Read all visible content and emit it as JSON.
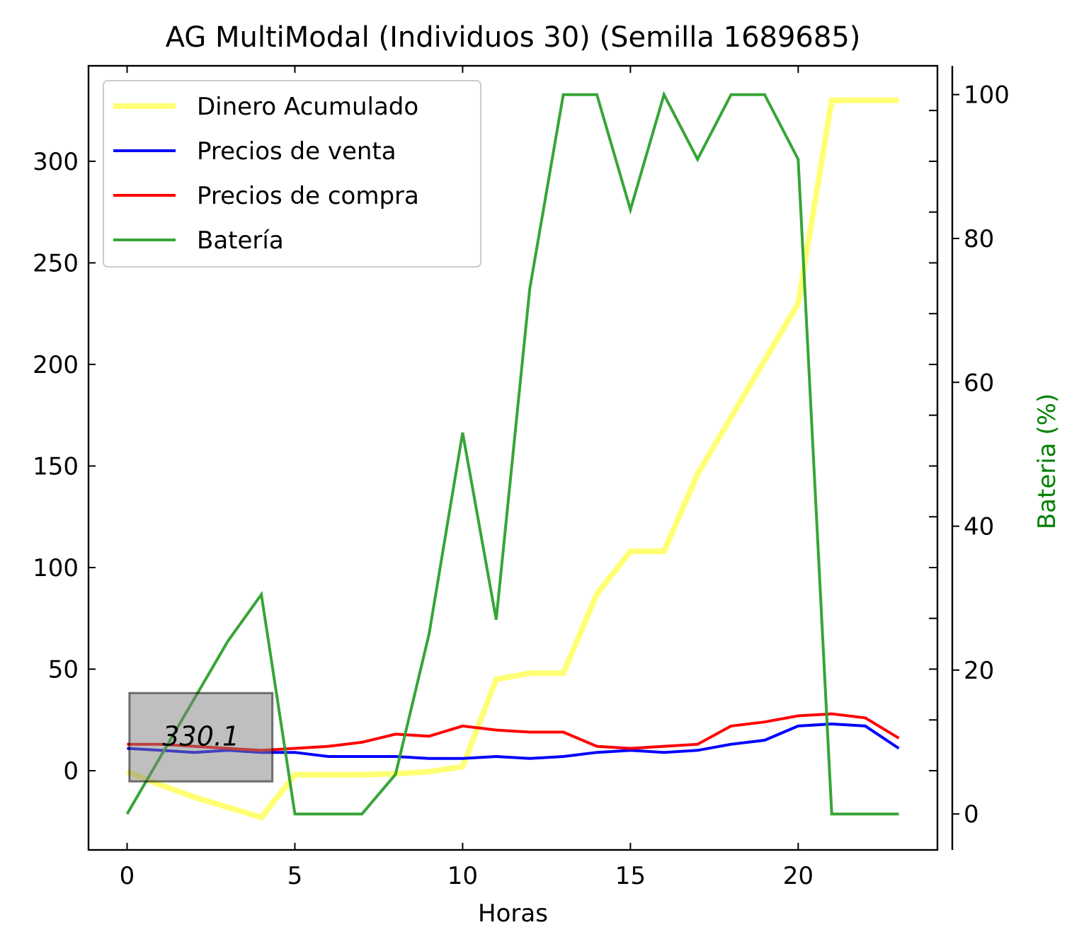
{
  "chart_data": {
    "type": "line",
    "title": "AG MultiModal (Individuos 30) (Semilla 1689685)",
    "xlabel": "Horas",
    "ylabel": "",
    "y2label": "Bateria (%)",
    "x": [
      0,
      1,
      2,
      3,
      4,
      5,
      6,
      7,
      8,
      9,
      10,
      11,
      12,
      13,
      14,
      15,
      16,
      17,
      18,
      19,
      20,
      21,
      22,
      23
    ],
    "xlim": [
      -1.15,
      24.15
    ],
    "ylim": [
      -39,
      347
    ],
    "y2lim": [
      -5,
      104
    ],
    "xticks": [
      0,
      5,
      10,
      15,
      20
    ],
    "yticks": [
      0,
      50,
      100,
      150,
      200,
      250,
      300
    ],
    "y2ticks": [
      0,
      20,
      40,
      60,
      80,
      100
    ],
    "grid": false,
    "legend_position": "top-left",
    "series": [
      {
        "name": "Dinero Acumulado",
        "axis": "left",
        "color": "#ffff66",
        "values": [
          -0.5,
          -7,
          -13,
          -18,
          -23,
          -2,
          -2,
          -2,
          -1.5,
          -0.5,
          2,
          45,
          48,
          48,
          87,
          108,
          108,
          146,
          174,
          202,
          230,
          330,
          330,
          330
        ]
      },
      {
        "name": "Precios de venta",
        "axis": "left",
        "color": "#0000ff",
        "values": [
          11,
          10,
          9,
          10,
          9,
          9,
          7,
          7,
          7,
          6,
          6,
          7,
          6,
          7,
          9,
          10,
          9,
          10,
          13,
          15,
          22,
          23,
          22,
          11
        ]
      },
      {
        "name": "Precios de compra",
        "axis": "left",
        "color": "#ff0000",
        "values": [
          13,
          13,
          12,
          11,
          10,
          11,
          12,
          14,
          18,
          17,
          22,
          20,
          19,
          19,
          12,
          11,
          12,
          13,
          22,
          24,
          27,
          28,
          26,
          16
        ]
      },
      {
        "name": "Batería",
        "axis": "right",
        "color": "#2ca02c",
        "values": [
          0,
          8,
          16,
          24,
          30.5,
          0,
          0,
          0,
          5.5,
          25,
          53,
          27,
          73,
          100,
          100,
          84,
          100,
          91,
          100,
          100,
          91,
          0,
          0,
          0
        ]
      }
    ],
    "annotation": {
      "text": "330.1",
      "x": 2.2,
      "y": 17
    }
  }
}
